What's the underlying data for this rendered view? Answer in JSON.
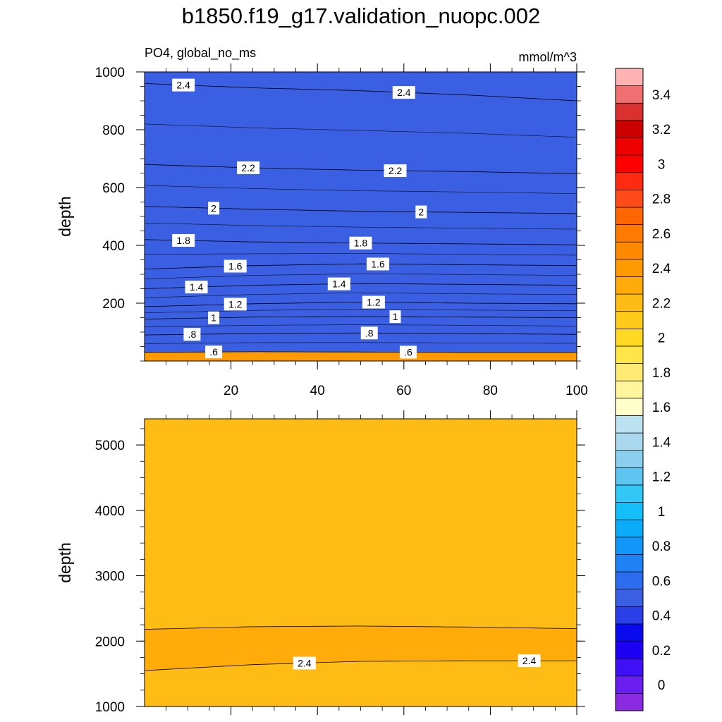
{
  "figure": {
    "title": "b1850.f19_g17.validation_nuopc.002",
    "left_subtitle": "PO4, global_no_ms",
    "right_subtitle": "mmol/m^3"
  },
  "colorbar": {
    "labels": [
      "0",
      "0.2",
      "0.4",
      "0.6",
      "0.8",
      "1",
      "1.2",
      "1.4",
      "1.6",
      "1.8",
      "2",
      "2.2",
      "2.4",
      "2.6",
      "2.8",
      "3",
      "3.2",
      "3.4"
    ],
    "levels": [
      -0.1,
      0,
      0.1,
      0.2,
      0.3,
      0.4,
      0.5,
      0.6,
      0.7,
      0.8,
      0.9,
      1.0,
      1.1,
      1.2,
      1.3,
      1.4,
      1.5,
      1.6,
      1.7,
      1.8,
      1.9,
      2.0,
      2.1,
      2.2,
      2.3,
      2.4,
      2.5,
      2.6,
      2.7,
      2.8,
      2.9,
      3.0,
      3.1,
      3.2,
      3.3,
      3.4,
      3.5,
      3.6
    ],
    "colors": [
      "#8A2BE2",
      "#6A1EF0",
      "#3F10F5",
      "#1E00F5",
      "#0A0AEE",
      "#2A3FE8",
      "#3B5FE2",
      "#2D6CEE",
      "#1E82F5",
      "#1296F8",
      "#0AABF8",
      "#14BEF8",
      "#32C8F5",
      "#5EC4F0",
      "#8AD0EE",
      "#AAD8EE",
      "#BCE2F2",
      "#FFFFCC",
      "#FFF59C",
      "#FFEB73",
      "#FFE44A",
      "#FFD824",
      "#FFCB1A",
      "#FFBC14",
      "#FFAC0A",
      "#FF9A00",
      "#FF8A00",
      "#FF7A00",
      "#FF6600",
      "#FF4A1A",
      "#FF2A10",
      "#FF0000",
      "#EE0000",
      "#CC0000",
      "#D93030",
      "#EE7070",
      "#FFB3B3"
    ]
  },
  "chart_data": [
    {
      "type": "heatmap",
      "panel": "upper",
      "title": "b1850.f19_g17.validation_nuopc.002",
      "left_subtitle": "PO4, global_no_ms",
      "right_subtitle": "mmol/m^3",
      "ylabel": "depth",
      "xlabel": "",
      "xlim": [
        0,
        100
      ],
      "ylim": [
        1000,
        0
      ],
      "x_ticks": [
        "20",
        "40",
        "60",
        "80",
        "100"
      ],
      "y_ticks": [
        "200",
        "400",
        "600",
        "800",
        "1000"
      ],
      "contours": [
        {
          "level": 0.6,
          "label": ".6",
          "x": [
            0,
            25,
            50,
            75,
            100
          ],
          "y": [
            30,
            32,
            31,
            30,
            30
          ]
        },
        {
          "level": 0.8,
          "label": ".8",
          "x": [
            0,
            25,
            50,
            75,
            100
          ],
          "y": [
            90,
            95,
            97,
            95,
            92
          ]
        },
        {
          "level": 1.0,
          "label": "1",
          "x": [
            0,
            25,
            50,
            75,
            100
          ],
          "y": [
            145,
            152,
            154,
            152,
            150
          ]
        },
        {
          "level": 1.2,
          "label": "1.2",
          "x": [
            0,
            25,
            50,
            75,
            100
          ],
          "y": [
            188,
            198,
            204,
            200,
            198
          ]
        },
        {
          "level": 1.4,
          "label": "1.4",
          "x": [
            0,
            25,
            50,
            75,
            100
          ],
          "y": [
            250,
            262,
            268,
            265,
            262
          ]
        },
        {
          "level": 1.6,
          "label": "1.6",
          "x": [
            0,
            25,
            50,
            75,
            100
          ],
          "y": [
            318,
            330,
            336,
            333,
            330
          ]
        },
        {
          "level": 1.8,
          "label": "1.8",
          "x": [
            0,
            25,
            50,
            75,
            100
          ],
          "y": [
            420,
            412,
            408,
            405,
            402
          ]
        },
        {
          "level": 2.0,
          "label": "2",
          "x": [
            0,
            25,
            50,
            75,
            100
          ],
          "y": [
            535,
            525,
            518,
            514,
            510
          ]
        },
        {
          "level": 2.2,
          "label": "2.2",
          "x": [
            0,
            25,
            50,
            75,
            100
          ],
          "y": [
            680,
            668,
            660,
            655,
            648
          ]
        },
        {
          "level": 2.4,
          "label": "2.4",
          "x": [
            0,
            25,
            50,
            75,
            100
          ],
          "y": [
            960,
            945,
            935,
            920,
            900
          ]
        }
      ]
    },
    {
      "type": "heatmap",
      "panel": "lower",
      "ylabel": "depth",
      "xlabel": "",
      "xlim": [
        0,
        100
      ],
      "ylim": [
        5400,
        1000
      ],
      "y_ticks": [
        "1000",
        "2000",
        "3000",
        "4000",
        "5000"
      ],
      "contours": [
        {
          "level": 2.4,
          "label": "2.4",
          "x": [
            0,
            25,
            50,
            75,
            100
          ],
          "y": [
            1550,
            1640,
            1690,
            1700,
            1700
          ]
        },
        {
          "level": 2.3,
          "label": "",
          "x": [
            0,
            25,
            50,
            75,
            100
          ],
          "y": [
            2180,
            2220,
            2230,
            2215,
            2190
          ]
        }
      ]
    }
  ]
}
